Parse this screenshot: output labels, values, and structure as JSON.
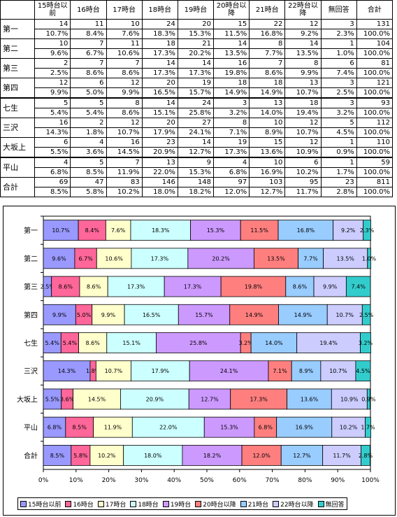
{
  "table": {
    "headers": [
      "15時台以前",
      "16時台",
      "17時台",
      "18時台",
      "19時台",
      "20時台以降",
      "21時台",
      "22時台以降",
      "無回答",
      "合計"
    ],
    "rows": [
      {
        "label": "第一",
        "counts": [
          "14",
          "11",
          "10",
          "24",
          "20",
          "15",
          "22",
          "12",
          "3",
          "131"
        ],
        "pcts": [
          "10.7%",
          "8.4%",
          "7.6%",
          "18.3%",
          "15.3%",
          "11.5%",
          "16.8%",
          "9.2%",
          "2.3%",
          "100.0%"
        ]
      },
      {
        "label": "第二",
        "counts": [
          "10",
          "7",
          "11",
          "18",
          "21",
          "14",
          "8",
          "14",
          "1",
          "104"
        ],
        "pcts": [
          "9.6%",
          "6.7%",
          "10.6%",
          "17.3%",
          "20.2%",
          "13.5%",
          "7.7%",
          "13.5%",
          "1.0%",
          "100.0%"
        ]
      },
      {
        "label": "第三",
        "counts": [
          "2",
          "7",
          "7",
          "14",
          "14",
          "16",
          "7",
          "8",
          "6",
          "81"
        ],
        "pcts": [
          "2.5%",
          "8.6%",
          "8.6%",
          "17.3%",
          "17.3%",
          "19.8%",
          "8.6%",
          "9.9%",
          "7.4%",
          "100.0%"
        ]
      },
      {
        "label": "第四",
        "counts": [
          "12",
          "6",
          "12",
          "20",
          "19",
          "18",
          "18",
          "13",
          "3",
          "121"
        ],
        "pcts": [
          "9.9%",
          "5.0%",
          "9.9%",
          "16.5%",
          "15.7%",
          "14.9%",
          "14.9%",
          "10.7%",
          "2.5%",
          "100.0%"
        ]
      },
      {
        "label": "七生",
        "counts": [
          "5",
          "5",
          "8",
          "14",
          "24",
          "3",
          "13",
          "18",
          "3",
          "93"
        ],
        "pcts": [
          "5.4%",
          "5.4%",
          "8.6%",
          "15.1%",
          "25.8%",
          "3.2%",
          "14.0%",
          "19.4%",
          "3.2%",
          "100.0%"
        ]
      },
      {
        "label": "三沢",
        "counts": [
          "16",
          "2",
          "12",
          "20",
          "27",
          "8",
          "10",
          "12",
          "5",
          "112"
        ],
        "pcts": [
          "14.3%",
          "1.8%",
          "10.7%",
          "17.9%",
          "24.1%",
          "7.1%",
          "8.9%",
          "10.7%",
          "4.5%",
          "100.0%"
        ]
      },
      {
        "label": "大坂上",
        "counts": [
          "6",
          "4",
          "16",
          "23",
          "14",
          "19",
          "15",
          "12",
          "1",
          "110"
        ],
        "pcts": [
          "5.5%",
          "3.6%",
          "14.5%",
          "20.9%",
          "12.7%",
          "17.3%",
          "13.6%",
          "10.9%",
          "0.9%",
          "100.0%"
        ]
      },
      {
        "label": "平山",
        "counts": [
          "4",
          "5",
          "7",
          "13",
          "9",
          "4",
          "10",
          "6",
          "1",
          "59"
        ],
        "pcts": [
          "6.8%",
          "8.5%",
          "11.9%",
          "22.0%",
          "15.3%",
          "6.8%",
          "16.9%",
          "10.2%",
          "1.7%",
          "100.0%"
        ]
      },
      {
        "label": "合計",
        "counts": [
          "69",
          "47",
          "83",
          "146",
          "148",
          "97",
          "103",
          "95",
          "23",
          "811"
        ],
        "pcts": [
          "8.5%",
          "5.8%",
          "10.2%",
          "18.0%",
          "18.2%",
          "12.0%",
          "12.7%",
          "11.7%",
          "2.8%",
          "100.0%"
        ]
      }
    ]
  },
  "chart_data": {
    "type": "bar",
    "orientation": "horizontal",
    "stacked": "percent",
    "categories": [
      "第一",
      "第二",
      "第三",
      "第四",
      "七生",
      "三沢",
      "大坂上",
      "平山",
      "合計"
    ],
    "xlim": [
      0,
      100
    ],
    "x_ticks": [
      "0%",
      "10%",
      "20%",
      "30%",
      "40%",
      "50%",
      "60%",
      "70%",
      "80%",
      "90%",
      "100%"
    ],
    "legend_position": "bottom",
    "series": [
      {
        "name": "15時台以前",
        "color": "#9999ff",
        "values": [
          10.7,
          9.6,
          2.5,
          9.9,
          5.4,
          14.3,
          5.5,
          6.8,
          8.5
        ],
        "labels": [
          "10.7%",
          "9.6%",
          "2.5%",
          "9.9%",
          "5.4%",
          "14.3%",
          "5.5%",
          "6.8%",
          "8.5%"
        ]
      },
      {
        "name": "16時台",
        "color": "#ff6699",
        "values": [
          8.4,
          6.7,
          8.6,
          5.0,
          5.4,
          1.8,
          3.6,
          8.5,
          5.8
        ],
        "labels": [
          "8.4%",
          "6.7%",
          "8.6%",
          "5.0%",
          "5.4%",
          "1.8%",
          "3.6%",
          "8.5%",
          "5.8%"
        ]
      },
      {
        "name": "17時台",
        "color": "#ffffcc",
        "values": [
          7.6,
          10.6,
          8.6,
          9.9,
          8.6,
          10.7,
          14.5,
          11.9,
          10.2
        ],
        "labels": [
          "7.6%",
          "10.6%",
          "8.6%",
          "9.9%",
          "8.6%",
          "10.7%",
          "14.5%",
          "11.9%",
          "10.2%"
        ]
      },
      {
        "name": "18時台",
        "color": "#ccffff",
        "values": [
          18.3,
          17.3,
          17.3,
          16.5,
          15.1,
          17.9,
          20.9,
          22.0,
          18.0
        ],
        "labels": [
          "18.3%",
          "17.3%",
          "17.3%",
          "16.5%",
          "15.1%",
          "17.9%",
          "20.9%",
          "22.0%",
          "18.0%"
        ]
      },
      {
        "name": "19時台",
        "color": "#cc99ff",
        "values": [
          15.3,
          20.2,
          17.3,
          15.7,
          25.8,
          24.1,
          12.7,
          15.3,
          18.2
        ],
        "labels": [
          "15.3%",
          "20.2%",
          "17.3%",
          "15.7%",
          "25.8%",
          "24.1%",
          "12.7%",
          "15.3%",
          "18.2%"
        ]
      },
      {
        "name": "20時台以降",
        "color": "#ff7f7f",
        "values": [
          11.5,
          13.5,
          19.8,
          14.9,
          3.2,
          7.1,
          17.3,
          6.8,
          12.0
        ],
        "labels": [
          "11.5%",
          "13.5%",
          "19.8%",
          "14.9%",
          "3.2%",
          "7.1%",
          "17.3%",
          "6.8%",
          "12.0%"
        ]
      },
      {
        "name": "21時台",
        "color": "#99ccff",
        "values": [
          16.8,
          7.7,
          8.6,
          14.9,
          14.0,
          8.9,
          13.6,
          16.9,
          12.7
        ],
        "labels": [
          "16.8%",
          "7.7%",
          "8.6%",
          "14.9%",
          "14.0%",
          "8.9%",
          "13.6%",
          "16.9%",
          "12.7%"
        ]
      },
      {
        "name": "22時台以降",
        "color": "#ccccff",
        "values": [
          9.2,
          13.5,
          9.9,
          10.7,
          19.4,
          10.7,
          10.9,
          10.2,
          11.7
        ],
        "labels": [
          "9.2%",
          "13.5%",
          "9.9%",
          "10.7%",
          "19.4%",
          "10.7%",
          "10.9%",
          "10.2%",
          "11.7%"
        ]
      },
      {
        "name": "無回答",
        "color": "#33cccc",
        "values": [
          2.3,
          1.0,
          7.4,
          2.5,
          3.2,
          4.5,
          0.9,
          1.7,
          2.8
        ],
        "labels": [
          "2.3%",
          "1.0%",
          "7.4%",
          "2.5%",
          "3.2%",
          "4.5%",
          "0.9%",
          "1.7%",
          "2.8%"
        ]
      }
    ]
  }
}
